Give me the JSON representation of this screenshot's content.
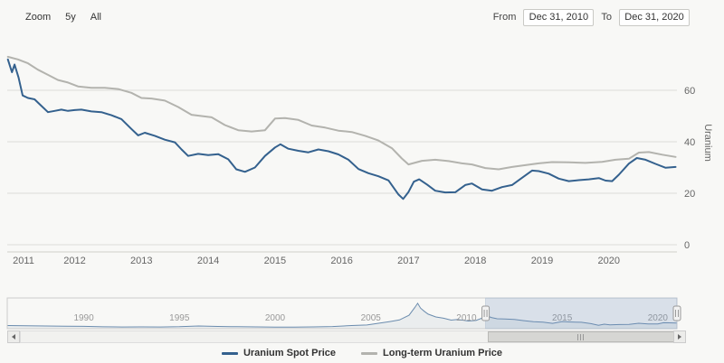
{
  "toolbar": {
    "zoom_label": "Zoom",
    "zoom_buttons": [
      "5y",
      "All"
    ],
    "from_label": "From",
    "from_value": "Dec 31, 2010",
    "to_label": "To",
    "to_value": "Dec 31, 2020"
  },
  "colors": {
    "spot": "#34618e",
    "longterm": "#b3b3ae",
    "grid": "#dcdcd8",
    "axis_text": "#666666",
    "nav_line": "#6b8cae",
    "selection_fill": "rgba(110,140,185,0.22)"
  },
  "chart_data": [
    {
      "type": "line",
      "title": "",
      "xlabel": "",
      "ylabel": "Uranium",
      "xlim": [
        2010.99,
        2021.02
      ],
      "ylim": [
        0,
        75
      ],
      "x_ticks": [
        2011,
        2012,
        2013,
        2014,
        2015,
        2016,
        2017,
        2018,
        2019,
        2020
      ],
      "y_ticks": [
        0,
        20,
        40,
        60
      ],
      "grid": "horizontal",
      "legend_position": "bottom",
      "series": [
        {
          "name": "Uranium Spot Price",
          "color": "#34618e",
          "x": [
            2011.0,
            2011.06,
            2011.1,
            2011.16,
            2011.22,
            2011.3,
            2011.4,
            2011.5,
            2011.6,
            2011.7,
            2011.8,
            2011.9,
            2012.0,
            2012.1,
            2012.25,
            2012.4,
            2012.55,
            2012.7,
            2012.85,
            2012.95,
            2013.05,
            2013.2,
            2013.35,
            2013.5,
            2013.6,
            2013.7,
            2013.85,
            2014.0,
            2014.15,
            2014.3,
            2014.42,
            2014.55,
            2014.7,
            2014.85,
            2015.0,
            2015.08,
            2015.2,
            2015.35,
            2015.5,
            2015.65,
            2015.8,
            2015.95,
            2016.1,
            2016.25,
            2016.4,
            2016.55,
            2016.7,
            2016.85,
            2016.92,
            2017.0,
            2017.08,
            2017.16,
            2017.28,
            2017.4,
            2017.55,
            2017.7,
            2017.85,
            2017.95,
            2018.1,
            2018.25,
            2018.4,
            2018.55,
            2018.7,
            2018.85,
            2018.95,
            2019.1,
            2019.25,
            2019.4,
            2019.55,
            2019.7,
            2019.85,
            2019.95,
            2020.05,
            2020.15,
            2020.3,
            2020.42,
            2020.55,
            2020.7,
            2020.85,
            2021.0
          ],
          "values": [
            72,
            67,
            70,
            65,
            58,
            57,
            56.5,
            54,
            51.5,
            52,
            52.5,
            52,
            52.3,
            52.5,
            51.8,
            51.5,
            50.3,
            48.8,
            45,
            42.5,
            43.5,
            42.3,
            40.8,
            39.8,
            37,
            34.5,
            35.3,
            34.8,
            35.2,
            33.2,
            29.3,
            28.3,
            30,
            34.5,
            37.8,
            39,
            37.3,
            36.5,
            35.9,
            37,
            36.3,
            35.1,
            33,
            29.4,
            27.8,
            26.6,
            25,
            19.5,
            17.8,
            20.5,
            24.5,
            25.4,
            23.3,
            21,
            20.3,
            20.4,
            23.2,
            23.8,
            21.5,
            21,
            22.4,
            23.2,
            26,
            28.8,
            28.6,
            27.6,
            25.7,
            24.7,
            25.1,
            25.4,
            25.9,
            24.9,
            24.7,
            27.2,
            31.5,
            33.7,
            33,
            31.4,
            29.9,
            30.2
          ]
        },
        {
          "name": "Long-term Uranium Price",
          "color": "#b3b3ae",
          "x": [
            2011.0,
            2011.15,
            2011.3,
            2011.45,
            2011.6,
            2011.75,
            2011.9,
            2012.05,
            2012.25,
            2012.45,
            2012.65,
            2012.85,
            2013.0,
            2013.15,
            2013.35,
            2013.55,
            2013.75,
            2013.9,
            2014.05,
            2014.25,
            2014.45,
            2014.65,
            2014.85,
            2015.0,
            2015.15,
            2015.35,
            2015.55,
            2015.75,
            2015.95,
            2016.15,
            2016.35,
            2016.55,
            2016.75,
            2016.9,
            2017.0,
            2017.2,
            2017.4,
            2017.6,
            2017.8,
            2017.95,
            2018.15,
            2018.35,
            2018.55,
            2018.75,
            2018.95,
            2019.15,
            2019.4,
            2019.65,
            2019.9,
            2020.1,
            2020.3,
            2020.45,
            2020.6,
            2020.8,
            2021.0
          ],
          "values": [
            73,
            72,
            70.5,
            68,
            66,
            64,
            63,
            61.5,
            61,
            61,
            60.5,
            59,
            57,
            56.8,
            56,
            53.5,
            50.5,
            50,
            49.5,
            46.5,
            44.5,
            44,
            44.5,
            49,
            49.2,
            48.5,
            46.3,
            45.5,
            44.3,
            43.8,
            42.3,
            40.5,
            37.5,
            33.5,
            31.2,
            32.6,
            33,
            32.5,
            31.6,
            31.2,
            29.8,
            29.3,
            30.2,
            30.9,
            31.6,
            32.1,
            32,
            31.8,
            32.2,
            33,
            33.4,
            35.8,
            36,
            35,
            34.1
          ]
        }
      ]
    },
    {
      "type": "area",
      "role": "navigator",
      "xlim": [
        1986,
        2021
      ],
      "ylim": [
        0,
        145
      ],
      "x_ticks": [
        1990,
        1995,
        2000,
        2005,
        2010,
        2015,
        2020
      ],
      "selection": {
        "from": 2011.0,
        "to": 2021.0
      },
      "series": [
        {
          "name": "Uranium Spot Price (full history)",
          "color": "#6b8cae",
          "x": [
            1986,
            1987,
            1988,
            1989,
            1990,
            1991,
            1992,
            1993,
            1994,
            1995,
            1996,
            1997,
            1998,
            1999,
            2000,
            2001,
            2002,
            2003,
            2004,
            2004.8,
            2005.4,
            2006,
            2006.5,
            2007,
            2007.3,
            2007.45,
            2007.6,
            2007.8,
            2008,
            2008.4,
            2008.8,
            2009.2,
            2009.5,
            2009.8,
            2010.1,
            2010.5,
            2010.9,
            2011.05,
            2011.3,
            2011.6,
            2012,
            2012.5,
            2013,
            2013.5,
            2014,
            2014.5,
            2015,
            2015.5,
            2016,
            2016.5,
            2016.9,
            2017.2,
            2017.5,
            2018,
            2018.5,
            2019,
            2019.5,
            2020,
            2020.3,
            2020.6,
            2021
          ],
          "values": [
            17,
            16,
            14.5,
            13,
            12.5,
            10,
            9,
            9.5,
            9.3,
            10.5,
            14.5,
            12,
            10.5,
            9.5,
            8.2,
            8.6,
            9.9,
            11.5,
            17,
            20,
            29,
            38,
            47,
            72,
            113,
            136,
            110,
            93,
            78,
            63,
            56,
            46,
            49,
            46,
            41,
            44,
            60,
            70,
            60,
            53,
            52,
            50,
            43,
            37,
            35,
            28.5,
            38,
            36,
            34.5,
            27,
            18,
            24,
            20.5,
            22,
            23,
            28.8,
            25,
            25,
            32,
            31.5,
            30
          ]
        }
      ]
    }
  ]
}
